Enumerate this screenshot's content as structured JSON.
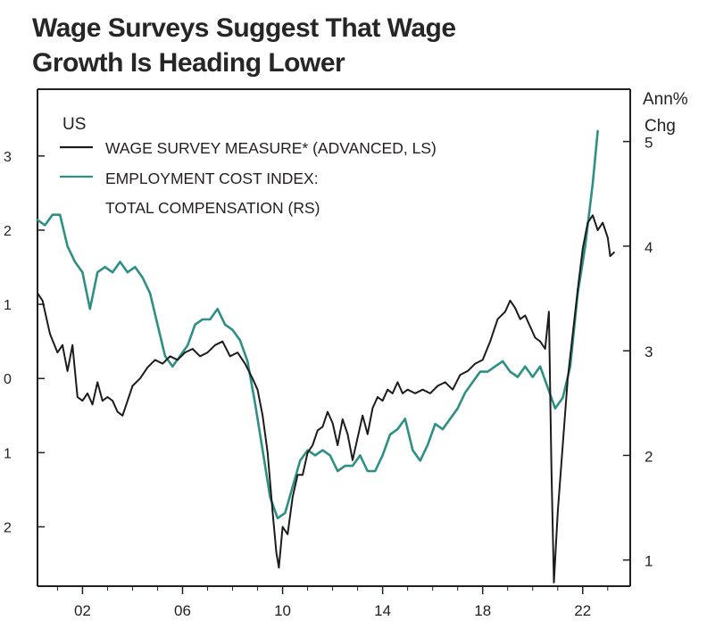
{
  "title": {
    "line1": "Wage Surveys Suggest That Wage",
    "line2": "Growth Is Heading Lower"
  },
  "chart_data": {
    "type": "line",
    "region_label": "US",
    "right_axis_title": [
      "Ann%",
      "Chg"
    ],
    "legend_position": "top-left",
    "left_axis": {
      "ylim": [
        -2.8,
        3.9
      ],
      "ticks": [
        3,
        2,
        1,
        0,
        -1,
        -2
      ],
      "tick_labels": [
        "3",
        "2",
        "1",
        "0",
        "1",
        "2"
      ]
    },
    "right_axis": {
      "ylim": [
        0.75,
        5.5
      ],
      "ticks": [
        5,
        4,
        3,
        2,
        1
      ],
      "tick_labels": [
        "5",
        "4",
        "3",
        "2",
        "1"
      ]
    },
    "x_axis": {
      "xlim": [
        2000.2,
        2023.9
      ],
      "ticks": [
        2002,
        2006,
        2010,
        2014,
        2018,
        2022
      ],
      "tick_labels": [
        "02",
        "06",
        "10",
        "14",
        "18",
        "22"
      ]
    },
    "grid": false,
    "colors": {
      "wage": "#1c1c1c",
      "eci": "#2e8f85",
      "axis": "#231f20"
    },
    "series": [
      {
        "name": "WAGE SURVEY MEASURE* (ADVANCED, LS)",
        "axis": "left",
        "points": [
          [
            2000.2,
            1.15
          ],
          [
            2000.4,
            1.05
          ],
          [
            2000.7,
            0.6
          ],
          [
            2001.0,
            0.35
          ],
          [
            2001.2,
            0.45
          ],
          [
            2001.4,
            0.1
          ],
          [
            2001.6,
            0.45
          ],
          [
            2001.8,
            -0.25
          ],
          [
            2002.0,
            -0.3
          ],
          [
            2002.2,
            -0.2
          ],
          [
            2002.4,
            -0.35
          ],
          [
            2002.6,
            -0.05
          ],
          [
            2002.8,
            -0.3
          ],
          [
            2003.0,
            -0.25
          ],
          [
            2003.2,
            -0.3
          ],
          [
            2003.4,
            -0.45
          ],
          [
            2003.6,
            -0.5
          ],
          [
            2003.8,
            -0.3
          ],
          [
            2004.0,
            -0.1
          ],
          [
            2004.3,
            0.0
          ],
          [
            2004.6,
            0.15
          ],
          [
            2004.9,
            0.25
          ],
          [
            2005.2,
            0.2
          ],
          [
            2005.5,
            0.3
          ],
          [
            2005.8,
            0.25
          ],
          [
            2006.1,
            0.35
          ],
          [
            2006.4,
            0.4
          ],
          [
            2006.7,
            0.3
          ],
          [
            2007.0,
            0.35
          ],
          [
            2007.3,
            0.45
          ],
          [
            2007.6,
            0.5
          ],
          [
            2007.9,
            0.3
          ],
          [
            2008.2,
            0.35
          ],
          [
            2008.5,
            0.2
          ],
          [
            2008.8,
            0.0
          ],
          [
            2009.0,
            -0.15
          ],
          [
            2009.2,
            -0.5
          ],
          [
            2009.4,
            -1.0
          ],
          [
            2009.6,
            -1.8
          ],
          [
            2009.75,
            -2.35
          ],
          [
            2009.85,
            -2.55
          ],
          [
            2010.0,
            -2.0
          ],
          [
            2010.2,
            -2.1
          ],
          [
            2010.4,
            -1.6
          ],
          [
            2010.6,
            -1.3
          ],
          [
            2010.8,
            -1.3
          ],
          [
            2011.0,
            -1.0
          ],
          [
            2011.2,
            -0.9
          ],
          [
            2011.4,
            -0.7
          ],
          [
            2011.6,
            -0.65
          ],
          [
            2011.8,
            -0.45
          ],
          [
            2012.0,
            -0.6
          ],
          [
            2012.2,
            -0.9
          ],
          [
            2012.4,
            -0.55
          ],
          [
            2012.6,
            -0.75
          ],
          [
            2012.8,
            -1.1
          ],
          [
            2013.0,
            -0.8
          ],
          [
            2013.2,
            -0.5
          ],
          [
            2013.4,
            -0.75
          ],
          [
            2013.6,
            -0.4
          ],
          [
            2013.8,
            -0.25
          ],
          [
            2014.0,
            -0.3
          ],
          [
            2014.2,
            -0.15
          ],
          [
            2014.4,
            -0.2
          ],
          [
            2014.6,
            -0.05
          ],
          [
            2014.8,
            -0.2
          ],
          [
            2015.0,
            -0.15
          ],
          [
            2015.3,
            -0.2
          ],
          [
            2015.6,
            -0.15
          ],
          [
            2015.9,
            -0.2
          ],
          [
            2016.2,
            -0.1
          ],
          [
            2016.5,
            -0.05
          ],
          [
            2016.8,
            -0.15
          ],
          [
            2017.1,
            0.05
          ],
          [
            2017.4,
            0.1
          ],
          [
            2017.7,
            0.2
          ],
          [
            2018.0,
            0.25
          ],
          [
            2018.3,
            0.5
          ],
          [
            2018.6,
            0.8
          ],
          [
            2018.9,
            0.9
          ],
          [
            2019.1,
            1.05
          ],
          [
            2019.3,
            0.95
          ],
          [
            2019.5,
            0.8
          ],
          [
            2019.7,
            0.85
          ],
          [
            2019.9,
            0.7
          ],
          [
            2020.1,
            0.55
          ],
          [
            2020.3,
            0.5
          ],
          [
            2020.5,
            0.4
          ],
          [
            2020.65,
            0.9
          ],
          [
            2020.75,
            -1.2
          ],
          [
            2020.85,
            -2.75
          ],
          [
            2021.0,
            -1.8
          ],
          [
            2021.2,
            -0.9
          ],
          [
            2021.4,
            0.0
          ],
          [
            2021.6,
            0.6
          ],
          [
            2021.8,
            1.2
          ],
          [
            2022.0,
            1.75
          ],
          [
            2022.2,
            2.1
          ],
          [
            2022.4,
            2.2
          ],
          [
            2022.6,
            2.0
          ],
          [
            2022.8,
            2.1
          ],
          [
            2023.0,
            1.9
          ],
          [
            2023.1,
            1.65
          ],
          [
            2023.25,
            1.7
          ]
        ]
      },
      {
        "name": "EMPLOYMENT COST INDEX: TOTAL COMPENSATION (RS)",
        "axis": "right",
        "points": [
          [
            2000.2,
            4.25
          ],
          [
            2000.5,
            4.2
          ],
          [
            2000.8,
            4.3
          ],
          [
            2001.1,
            4.3
          ],
          [
            2001.4,
            4.0
          ],
          [
            2001.7,
            3.85
          ],
          [
            2002.0,
            3.75
          ],
          [
            2002.3,
            3.4
          ],
          [
            2002.6,
            3.75
          ],
          [
            2002.9,
            3.8
          ],
          [
            2003.2,
            3.75
          ],
          [
            2003.5,
            3.85
          ],
          [
            2003.8,
            3.75
          ],
          [
            2004.1,
            3.8
          ],
          [
            2004.4,
            3.7
          ],
          [
            2004.7,
            3.55
          ],
          [
            2005.0,
            3.25
          ],
          [
            2005.3,
            2.95
          ],
          [
            2005.6,
            2.85
          ],
          [
            2005.9,
            2.95
          ],
          [
            2006.2,
            3.05
          ],
          [
            2006.5,
            3.25
          ],
          [
            2006.8,
            3.3
          ],
          [
            2007.1,
            3.3
          ],
          [
            2007.4,
            3.4
          ],
          [
            2007.7,
            3.25
          ],
          [
            2008.0,
            3.2
          ],
          [
            2008.3,
            3.1
          ],
          [
            2008.6,
            2.9
          ],
          [
            2008.9,
            2.5
          ],
          [
            2009.2,
            2.05
          ],
          [
            2009.5,
            1.6
          ],
          [
            2009.8,
            1.4
          ],
          [
            2010.1,
            1.45
          ],
          [
            2010.4,
            1.7
          ],
          [
            2010.7,
            1.95
          ],
          [
            2011.0,
            2.05
          ],
          [
            2011.3,
            2.0
          ],
          [
            2011.6,
            2.05
          ],
          [
            2011.9,
            2.0
          ],
          [
            2012.2,
            1.85
          ],
          [
            2012.5,
            1.9
          ],
          [
            2012.8,
            1.9
          ],
          [
            2013.1,
            2.0
          ],
          [
            2013.4,
            1.85
          ],
          [
            2013.7,
            1.85
          ],
          [
            2014.0,
            2.0
          ],
          [
            2014.3,
            2.2
          ],
          [
            2014.6,
            2.25
          ],
          [
            2014.9,
            2.35
          ],
          [
            2015.2,
            2.05
          ],
          [
            2015.5,
            1.95
          ],
          [
            2015.8,
            2.1
          ],
          [
            2016.1,
            2.3
          ],
          [
            2016.4,
            2.25
          ],
          [
            2016.7,
            2.35
          ],
          [
            2017.0,
            2.45
          ],
          [
            2017.3,
            2.6
          ],
          [
            2017.6,
            2.7
          ],
          [
            2017.9,
            2.8
          ],
          [
            2018.2,
            2.8
          ],
          [
            2018.5,
            2.85
          ],
          [
            2018.8,
            2.9
          ],
          [
            2019.1,
            2.8
          ],
          [
            2019.4,
            2.75
          ],
          [
            2019.7,
            2.85
          ],
          [
            2020.0,
            2.75
          ],
          [
            2020.3,
            2.85
          ],
          [
            2020.6,
            2.65
          ],
          [
            2020.9,
            2.45
          ],
          [
            2021.2,
            2.55
          ],
          [
            2021.5,
            2.85
          ],
          [
            2021.8,
            3.55
          ],
          [
            2022.1,
            4.0
          ],
          [
            2022.4,
            4.6
          ],
          [
            2022.6,
            5.1
          ]
        ]
      }
    ]
  }
}
